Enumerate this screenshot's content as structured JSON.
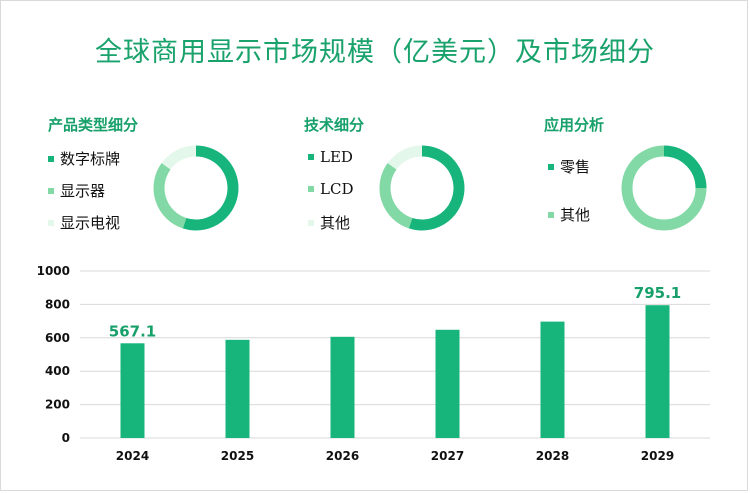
{
  "title": "全球商用显示市场规模（亿美元）及市场细分",
  "colors": {
    "dark": "#17b57b",
    "mid": "#82d9a5",
    "light": "#e3f7ea",
    "title": "#19a26b",
    "value_label": "#17a06a"
  },
  "sections": [
    {
      "title": "产品类型细分",
      "items": [
        {
          "label": "数字标牌",
          "share": 0.55
        },
        {
          "label": "显示器",
          "share": 0.3
        },
        {
          "label": "显示电视",
          "share": 0.15
        }
      ]
    },
    {
      "title": "技术细分",
      "items": [
        {
          "label": "LED",
          "share": 0.55
        },
        {
          "label": "LCD",
          "share": 0.3
        },
        {
          "label": "其他",
          "share": 0.15
        }
      ]
    },
    {
      "title": "应用分析",
      "items": [
        {
          "label": "零售",
          "share": 0.25
        },
        {
          "label": "其他",
          "share": 0.75
        }
      ]
    }
  ],
  "chart_data": {
    "type": "bar",
    "categories": [
      "2024",
      "2025",
      "2026",
      "2027",
      "2028",
      "2029"
    ],
    "values": [
      567.1,
      588,
      606,
      648,
      697,
      795.1
    ],
    "data_labels": {
      "2024": "567.1",
      "2029": "795.1"
    },
    "ylim": [
      0,
      1000
    ],
    "yticks": [
      "0",
      "200",
      "400",
      "600",
      "800",
      "1000"
    ],
    "grid": true,
    "xlabel": "",
    "ylabel": ""
  }
}
